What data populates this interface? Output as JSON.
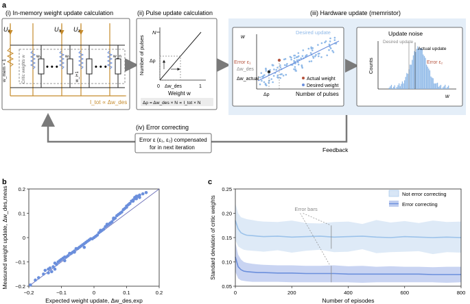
{
  "labels": {
    "panel_a": "a",
    "panel_b": "b",
    "panel_c": "c",
    "step_i": "(i) In-memory weight update calculation",
    "step_ii": "(ii) Pulse update calculation",
    "step_iii": "(iii) Hardware update (memristor)",
    "step_iv": "(iv) Error correcting",
    "feedback": "Feedback"
  },
  "panel_a": {
    "circuit": {
      "u1": "U₁",
      "u3": "U₃",
      "u2": "U₂",
      "wmem": "w_mem = 1",
      "critic_weights": "Critic weights w",
      "w1": "w₁",
      "w_i": "wᵢ",
      "w_ij": "w_i+1",
      "w_n": "w_n",
      "dots": "• • •",
      "itot": "I_tot ∝ Δw_des"
    },
    "pulse_plot": {
      "ylabel": "Number of pulses",
      "n_tick": "N",
      "xlabel": "Weight w",
      "x0": "0",
      "x1": "1",
      "delta_rho": "Δρ",
      "delta_wdes": "Δw_des",
      "formula": "Δρ = Δw_des × N ∝ I_tot × N"
    },
    "hardware_plot": {
      "ylabel": "w",
      "xlabel": "Number of pulses",
      "desired_update": "Desired update",
      "error_e1": "Error ε₁",
      "delta_wdes": "Δw_des",
      "delta_wactual": "Δw_actual",
      "delta_rho": "Δρ",
      "legend_actual": "Actual weight",
      "legend_desired": "Desired weight"
    },
    "noise_plot": {
      "title": "Update noise",
      "ylabel": "Counts",
      "xlabel": "w",
      "desired_update": "Desired update",
      "actual_update": "Actual update",
      "error_e2": "Error ε₂"
    },
    "error_box_line1": "Error ε (ε₁, ε₂) compensated",
    "error_box_line2": "for in next iteration"
  },
  "colors": {
    "accent_blue": "#6b8fdc",
    "light_blue": "#8fb9e8",
    "orange": "#c58a2a",
    "red": "#b5523c",
    "panel_bg": "#e4eef8",
    "gray_arrow": "#7a7a7a"
  },
  "chart_data": [
    {
      "type": "scatter",
      "id": "b",
      "xlabel": "Expected weight update, Δw_des,exp",
      "ylabel": "Measured weight update, Δw_des,meas",
      "xlim": [
        -0.2,
        0.2
      ],
      "ylim": [
        -0.2,
        0.2
      ],
      "xticks": [
        "−0.2",
        "−0.1",
        "0",
        "0.1",
        "0.2"
      ],
      "yticks": [
        "−0.2",
        "−0.1",
        "0",
        "0.1",
        "0.2"
      ],
      "x": [
        -0.195,
        -0.18,
        -0.17,
        -0.155,
        -0.15,
        -0.14,
        -0.135,
        -0.125,
        -0.12,
        -0.115,
        -0.11,
        -0.105,
        -0.1,
        -0.095,
        -0.09,
        -0.085,
        -0.08,
        -0.075,
        -0.07,
        -0.065,
        -0.06,
        -0.055,
        -0.05,
        -0.045,
        -0.04,
        -0.035,
        -0.03,
        -0.025,
        -0.02,
        -0.015,
        -0.01,
        -0.005,
        0,
        0.005,
        0.01,
        0.015,
        0.02,
        0.025,
        0.03,
        0.035,
        0.04,
        0.045,
        0.05,
        0.055,
        0.06,
        0.065,
        0.07,
        0.075,
        0.08,
        0.085,
        0.09,
        0.095,
        0.1,
        0.105,
        0.11,
        0.115,
        0.12,
        0.125,
        0.13,
        0.14,
        0.15,
        0.16,
        -0.13,
        -0.14,
        -0.12,
        -0.09,
        -0.06,
        -0.03,
        0.02,
        0.04,
        0.06,
        0.08,
        0.1,
        0.11,
        0.12,
        0.13,
        0.14,
        0.135,
        0.125
      ],
      "y": [
        -0.195,
        -0.175,
        -0.165,
        -0.15,
        -0.135,
        -0.13,
        -0.125,
        -0.12,
        -0.105,
        -0.11,
        -0.1,
        -0.095,
        -0.09,
        -0.085,
        -0.08,
        -0.08,
        -0.075,
        -0.065,
        -0.065,
        -0.06,
        -0.055,
        -0.045,
        -0.045,
        -0.04,
        -0.035,
        -0.03,
        -0.025,
        -0.02,
        -0.015,
        -0.01,
        -0.005,
        -0.005,
        0,
        0.005,
        0.01,
        0.02,
        0.025,
        0.03,
        0.035,
        0.045,
        0.05,
        0.055,
        0.06,
        0.065,
        0.075,
        0.08,
        0.09,
        0.095,
        0.1,
        0.105,
        0.115,
        0.12,
        0.13,
        0.135,
        0.14,
        0.15,
        0.155,
        0.165,
        0.17,
        0.175,
        0.18,
        0.185,
        -0.14,
        -0.145,
        -0.13,
        -0.095,
        -0.06,
        -0.04,
        0.03,
        0.055,
        0.08,
        0.1,
        0.125,
        0.14,
        0.15,
        0.16,
        0.165,
        0.17,
        0.16
      ]
    },
    {
      "type": "line",
      "id": "c",
      "xlabel": "Number of episodes",
      "ylabel": "Standard deviation of critic weights",
      "xlim": [
        0,
        800
      ],
      "ylim": [
        0.05,
        0.25
      ],
      "xticks": [
        "0",
        "200",
        "400",
        "600",
        "800"
      ],
      "yticks": [
        "0.05",
        "0.10",
        "0.15",
        "0.20",
        "0.25"
      ],
      "legend": "top-right",
      "annotation": "Error bars",
      "series": [
        {
          "name": "Not error correcting",
          "x": [
            0,
            10,
            20,
            30,
            40,
            60,
            80,
            100,
            150,
            200,
            250,
            300,
            350,
            400,
            450,
            500,
            550,
            600,
            650,
            700,
            750,
            800
          ],
          "y": [
            0.185,
            0.168,
            0.16,
            0.157,
            0.155,
            0.154,
            0.153,
            0.152,
            0.153,
            0.151,
            0.152,
            0.153,
            0.151,
            0.152,
            0.153,
            0.151,
            0.15,
            0.152,
            0.151,
            0.15,
            0.151,
            0.15
          ],
          "upper": [
            0.22,
            0.2,
            0.192,
            0.19,
            0.188,
            0.186,
            0.184,
            0.183,
            0.182,
            0.185,
            0.18,
            0.179,
            0.182,
            0.183,
            0.178,
            0.186,
            0.181,
            0.184,
            0.18,
            0.185,
            0.182,
            0.183
          ],
          "lower": [
            0.145,
            0.132,
            0.128,
            0.125,
            0.124,
            0.123,
            0.122,
            0.121,
            0.124,
            0.119,
            0.123,
            0.125,
            0.12,
            0.121,
            0.126,
            0.118,
            0.12,
            0.121,
            0.122,
            0.116,
            0.12,
            0.119
          ]
        },
        {
          "name": "Error correcting",
          "x": [
            0,
            10,
            20,
            30,
            40,
            60,
            80,
            100,
            150,
            200,
            250,
            300,
            350,
            400,
            450,
            500,
            550,
            600,
            650,
            700,
            750,
            800
          ],
          "y": [
            0.11,
            0.09,
            0.084,
            0.081,
            0.08,
            0.079,
            0.078,
            0.078,
            0.077,
            0.077,
            0.076,
            0.076,
            0.076,
            0.075,
            0.075,
            0.075,
            0.075,
            0.075,
            0.075,
            0.074,
            0.074,
            0.074
          ],
          "upper": [
            0.14,
            0.115,
            0.105,
            0.1,
            0.098,
            0.096,
            0.095,
            0.094,
            0.093,
            0.093,
            0.092,
            0.092,
            0.093,
            0.091,
            0.092,
            0.09,
            0.091,
            0.09,
            0.09,
            0.089,
            0.09,
            0.09
          ],
          "lower": [
            0.08,
            0.066,
            0.062,
            0.061,
            0.06,
            0.059,
            0.059,
            0.059,
            0.059,
            0.058,
            0.058,
            0.058,
            0.058,
            0.058,
            0.057,
            0.058,
            0.058,
            0.058,
            0.058,
            0.058,
            0.057,
            0.058
          ]
        }
      ]
    }
  ]
}
